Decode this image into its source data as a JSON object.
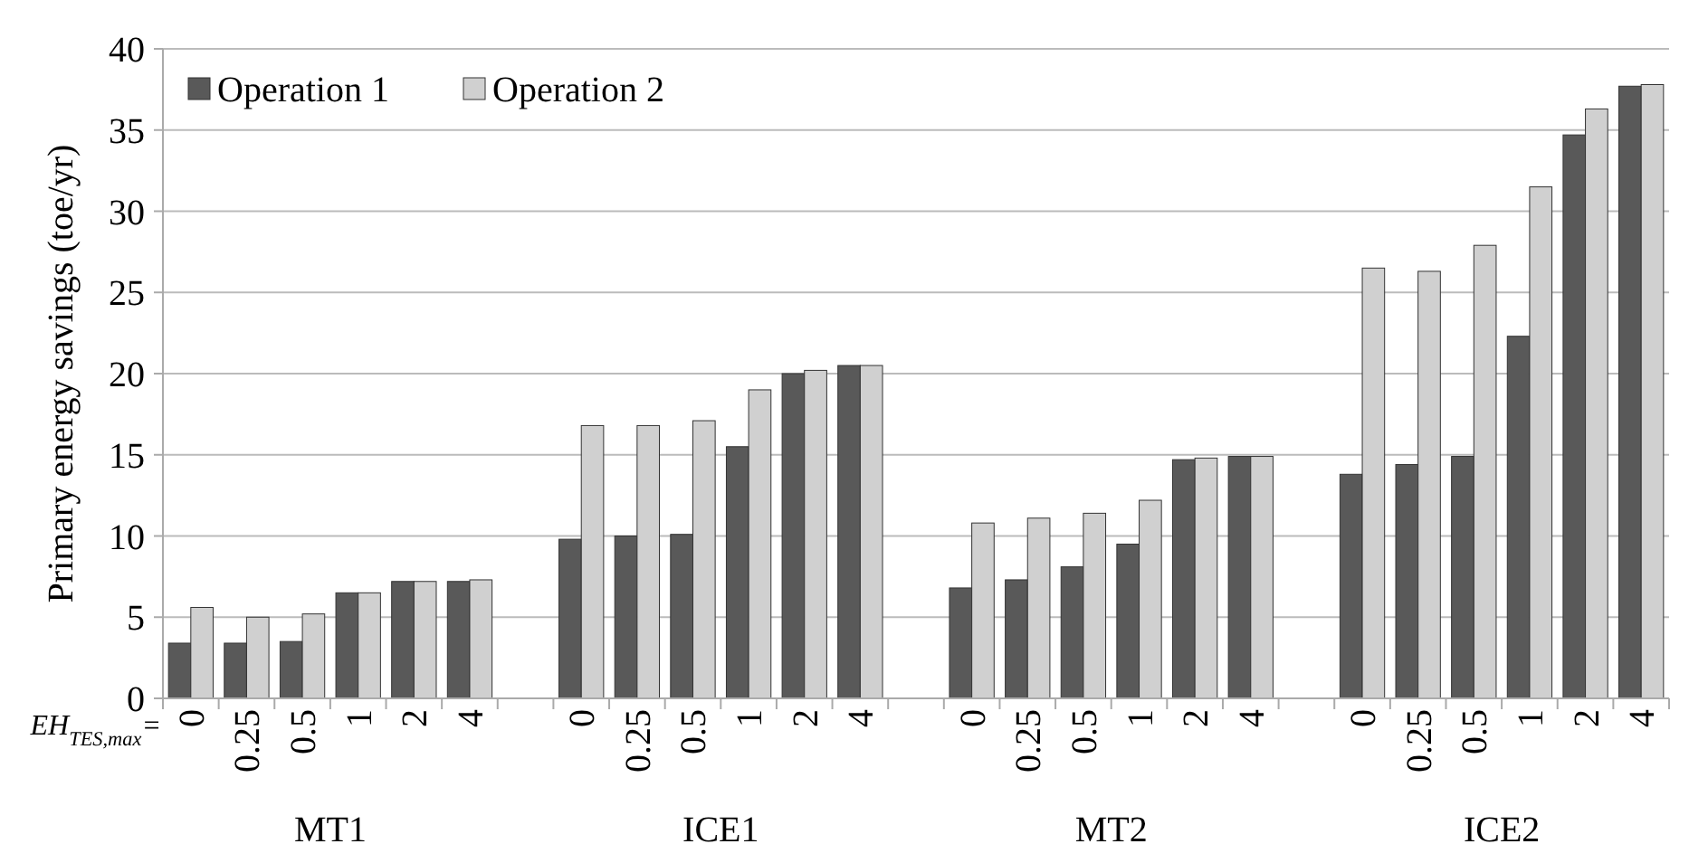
{
  "chart_data": {
    "type": "bar",
    "ylabel": "Primary energy savings (toe/yr)",
    "xlabel": "EH$_{TES,max}$=",
    "categories": [
      "0",
      "0.25",
      "0.5",
      "1",
      "2",
      "4",
      null,
      "0",
      "0.25",
      "0.5",
      "1",
      "2",
      "4",
      null,
      "0",
      "0.25",
      "0.5",
      "1",
      "2",
      "4",
      null,
      "0",
      "0.25",
      "0.5",
      "1",
      "2",
      "4"
    ],
    "annotations": [
      "MT1",
      "ICE1",
      "MT2",
      "ICE2"
    ],
    "series": [
      {
        "name": "Operation 1",
        "color": "#595959",
        "values": [
          3.4,
          3.4,
          3.5,
          6.5,
          7.2,
          7.2,
          null,
          9.8,
          10.0,
          10.1,
          15.5,
          20.0,
          20.5,
          null,
          6.8,
          7.3,
          8.1,
          9.5,
          14.7,
          14.9,
          null,
          13.8,
          14.4,
          14.9,
          22.3,
          34.7,
          37.7
        ]
      },
      {
        "name": "Operation 2",
        "color": "#d0d0d0",
        "values": [
          5.6,
          5.0,
          5.2,
          6.5,
          7.2,
          7.3,
          null,
          16.8,
          16.8,
          17.1,
          19.0,
          20.2,
          20.5,
          null,
          10.8,
          11.1,
          11.4,
          12.2,
          14.8,
          14.9,
          null,
          26.5,
          26.3,
          27.9,
          31.5,
          36.3,
          37.8
        ]
      }
    ],
    "ylim": [
      0,
      40
    ],
    "yticks": [
      0,
      5,
      10,
      15,
      20,
      25,
      30,
      35,
      40
    ],
    "grid": "y",
    "legend": "top left"
  }
}
